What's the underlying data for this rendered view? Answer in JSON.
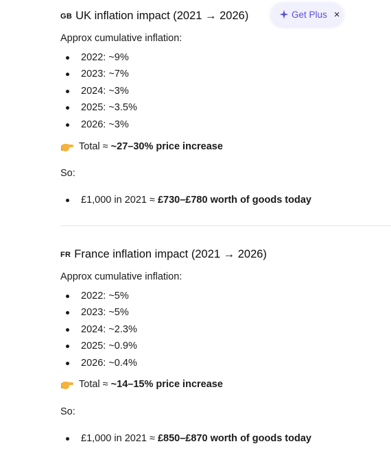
{
  "uk": {
    "flag": "GB",
    "title": "UK inflation impact (2021 → 2026)",
    "intro": "Approx cumulative inflation:",
    "items": [
      "2022: ~9%",
      "2023: ~7%",
      "2024: ~3%",
      "2025: ~3.5%",
      "2026: ~3%"
    ],
    "total_prefix": "Total ≈ ",
    "total_bold": "~27–30% price increase",
    "so": "So:",
    "result_prefix": "£1,000 in 2021 ≈ ",
    "result_bold": "£730–£780 worth of goods today"
  },
  "fr": {
    "flag": "FR",
    "title": "France inflation impact (2021 → 2026)",
    "intro": "Approx cumulative inflation:",
    "items": [
      "2022: ~5%",
      "2023: ~5%",
      "2024: ~2.3%",
      "2025: ~0.9%",
      "2026: ~0.4%"
    ],
    "total_prefix": "Total ≈ ",
    "total_bold": "~14–15% price increase",
    "so": "So:",
    "result_prefix": "£1,000 in 2021 ≈ ",
    "result_bold": "£850–£870 worth of goods today"
  },
  "upsell": {
    "label": "Get Plus",
    "close": "×",
    "accent": "#5a4fd6"
  }
}
